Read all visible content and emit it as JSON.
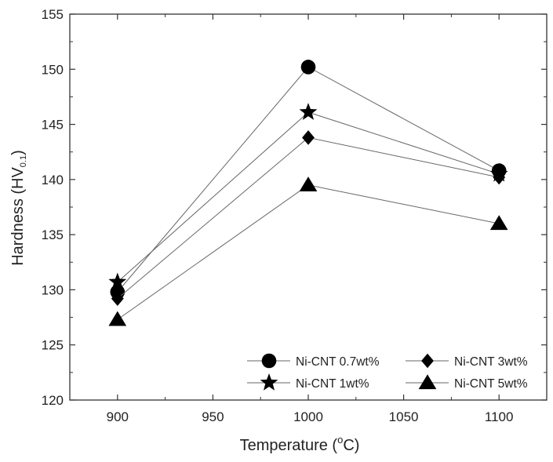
{
  "chart_data": {
    "type": "line",
    "xlabel": "Temperature (°C)",
    "xlabel_main": "Temperature (",
    "xlabel_unit_sup": "o",
    "xlabel_unit": "C)",
    "ylabel": "Hardness (HV0.1)",
    "ylabel_main": "Hardness (HV",
    "ylabel_sub": "0.1",
    "ylabel_close": ")",
    "xlim": [
      875,
      1125
    ],
    "ylim": [
      120,
      155
    ],
    "xticks": [
      900,
      950,
      1000,
      1050,
      1100
    ],
    "yticks": [
      120,
      125,
      130,
      135,
      140,
      145,
      150,
      155
    ],
    "x": [
      900,
      1000,
      1100
    ],
    "series": [
      {
        "name": "Ni-CNT 0.7wt%",
        "marker": "circle",
        "values": [
          129.8,
          150.2,
          140.8
        ]
      },
      {
        "name": "Ni-CNT 1wt%",
        "marker": "star",
        "values": [
          130.7,
          146.1,
          140.5
        ]
      },
      {
        "name": "Ni-CNT 3wt%",
        "marker": "diamond",
        "values": [
          129.2,
          143.8,
          140.2
        ]
      },
      {
        "name": "Ni-CNT 5wt%",
        "marker": "triangle",
        "values": [
          127.3,
          139.5,
          136.0
        ]
      }
    ],
    "legend": {
      "placement": "bottom-right",
      "columns": 2
    },
    "colors": {
      "marker": "#000000",
      "line": "#666666"
    },
    "grid": false
  }
}
